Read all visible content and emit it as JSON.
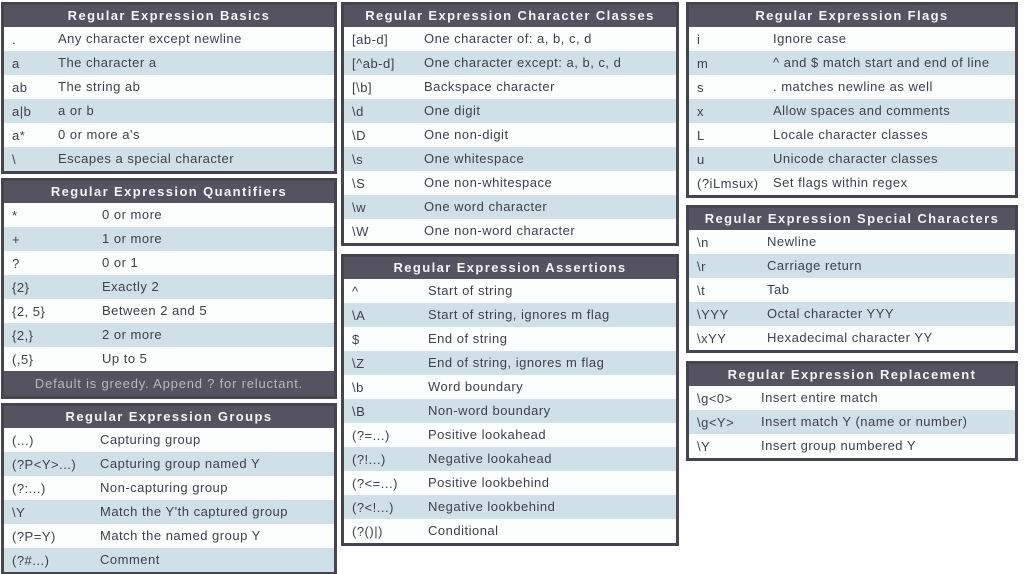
{
  "colors": {
    "header_bg": "#54535f",
    "header_text": "#f4f4f6",
    "row_bg": "#fcfdfd",
    "row_alt_bg": "#cfe0e6",
    "body_text": "#3f404b",
    "border": "#45444f",
    "footer_text": "#b8b9c2",
    "page_bg": "#ffffff"
  },
  "tables": {
    "basics": {
      "title": "Regular Expression Basics",
      "rows": [
        {
          "sym": ".",
          "desc": "Any character except newline"
        },
        {
          "sym": "a",
          "desc": "The character a"
        },
        {
          "sym": "ab",
          "desc": "The string ab"
        },
        {
          "sym": "a|b",
          "desc": "a or b"
        },
        {
          "sym": "a*",
          "desc": "0 or more a's"
        },
        {
          "sym": "\\",
          "desc": "Escapes a special character"
        }
      ]
    },
    "quantifiers": {
      "title": "Regular Expression Quantifiers",
      "rows": [
        {
          "sym": "*",
          "desc": "0 or more"
        },
        {
          "sym": "+",
          "desc": "1 or more"
        },
        {
          "sym": "?",
          "desc": "0 or 1"
        },
        {
          "sym": "{2}",
          "desc": "Exactly 2"
        },
        {
          "sym": "{2, 5}",
          "desc": "Between 2 and 5"
        },
        {
          "sym": "{2,}",
          "desc": "2 or more"
        },
        {
          "sym": "(,5}",
          "desc": "Up to 5"
        }
      ],
      "footer": "Default is greedy. Append ? for reluctant."
    },
    "groups": {
      "title": "Regular Expression Groups",
      "rows": [
        {
          "sym": "(...)",
          "desc": "Capturing group"
        },
        {
          "sym": "(?P<Y>...)",
          "desc": "Capturing group named Y"
        },
        {
          "sym": "(?:...)",
          "desc": "Non-capturing group"
        },
        {
          "sym": "\\Y",
          "desc": "Match the Y'th captured group"
        },
        {
          "sym": "(?P=Y)",
          "desc": "Match the named group Y"
        },
        {
          "sym": "(?#...)",
          "desc": "Comment"
        }
      ]
    },
    "character_classes": {
      "title": "Regular Expression Character Classes",
      "rows": [
        {
          "sym": "[ab-d]",
          "desc": "One character of: a, b, c, d"
        },
        {
          "sym": "[^ab-d]",
          "desc": "One character except: a, b, c, d"
        },
        {
          "sym": "[\\b]",
          "desc": "Backspace character"
        },
        {
          "sym": "\\d",
          "desc": "One digit"
        },
        {
          "sym": "\\D",
          "desc": "One non-digit"
        },
        {
          "sym": "\\s",
          "desc": "One whitespace"
        },
        {
          "sym": "\\S",
          "desc": "One non-whitespace"
        },
        {
          "sym": "\\w",
          "desc": "One word character"
        },
        {
          "sym": "\\W",
          "desc": "One non-word character"
        }
      ]
    },
    "assertions": {
      "title": "Regular Expression Assertions",
      "rows": [
        {
          "sym": "^",
          "desc": "Start of string"
        },
        {
          "sym": "\\A",
          "desc": "Start of string, ignores m flag"
        },
        {
          "sym": "$",
          "desc": "End of string"
        },
        {
          "sym": "\\Z",
          "desc": "End of string, ignores m flag"
        },
        {
          "sym": "\\b",
          "desc": "Word boundary"
        },
        {
          "sym": "\\B",
          "desc": "Non-word boundary"
        },
        {
          "sym": "(?=...)",
          "desc": "Positive lookahead"
        },
        {
          "sym": "(?!...)",
          "desc": "Negative lookahead"
        },
        {
          "sym": "(?<=...)",
          "desc": "Positive lookbehind"
        },
        {
          "sym": "(?<!...)",
          "desc": "Negative lookbehind"
        },
        {
          "sym": "(?()|)",
          "desc": "Conditional"
        }
      ]
    },
    "flags": {
      "title": "Regular Expression Flags",
      "rows": [
        {
          "sym": "i",
          "desc": "Ignore case"
        },
        {
          "sym": "m",
          "desc": "^ and $ match start and end of line"
        },
        {
          "sym": "s",
          "desc": ". matches newline as well"
        },
        {
          "sym": "x",
          "desc": "Allow spaces and comments"
        },
        {
          "sym": "L",
          "desc": "Locale character classes"
        },
        {
          "sym": "u",
          "desc": "Unicode character classes"
        },
        {
          "sym": "(?iLmsux)",
          "desc": "Set flags within regex"
        }
      ]
    },
    "special_characters": {
      "title": "Regular Expression Special Characters",
      "rows": [
        {
          "sym": "\\n",
          "desc": "Newline"
        },
        {
          "sym": "\\r",
          "desc": "Carriage return"
        },
        {
          "sym": "\\t",
          "desc": "Tab"
        },
        {
          "sym": "\\YYY",
          "desc": "Octal character YYY"
        },
        {
          "sym": "\\xYY",
          "desc": "Hexadecimal character YY"
        }
      ]
    },
    "replacement": {
      "title": "Regular Expression Replacement",
      "rows": [
        {
          "sym": "\\g<0>",
          "desc": "Insert entire match"
        },
        {
          "sym": "\\g<Y>",
          "desc": "Insert match Y (name or number)"
        },
        {
          "sym": "\\Y",
          "desc": "Insert group numbered Y"
        }
      ]
    }
  }
}
